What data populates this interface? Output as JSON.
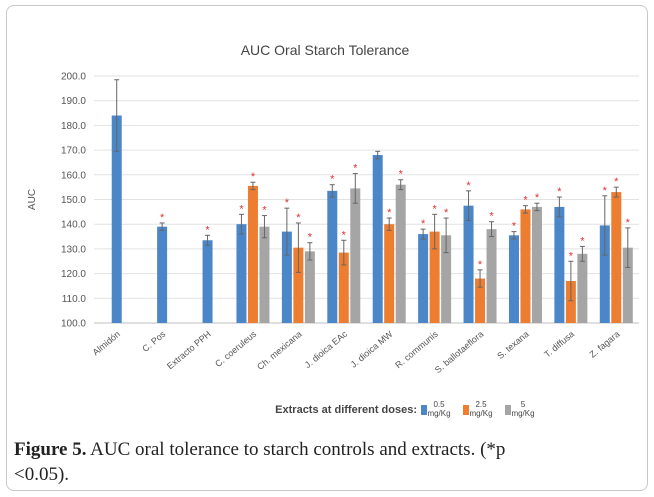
{
  "chart_data": {
    "type": "bar",
    "title": "AUC Oral Starch Tolerance",
    "ylabel": "AUC",
    "xlabel": "Extracts at different doses:",
    "ylim": [
      100,
      200
    ],
    "yticks": [
      "100.0",
      "110.0",
      "120.0",
      "130.0",
      "140.0",
      "150.0",
      "160.0",
      "170.0",
      "180.0",
      "190.0",
      "200.0"
    ],
    "grid": true,
    "legend_position": "bottom",
    "categories": [
      "Almidón",
      "C. Pos",
      "Extracto PPH",
      "C. coeruleus",
      "Ch. mexicana",
      "J. dioica EAc",
      "J. dioica MW",
      "R. communis",
      "S. ballotaeflora",
      "S. texana",
      "T. diffusa",
      "Z. fagara"
    ],
    "series": [
      {
        "name": "0.5 mg/Kg",
        "color": "#4a86c8",
        "values": [
          184,
          139,
          133.5,
          140,
          137,
          153.5,
          168,
          136,
          147.5,
          135.5,
          147,
          139.5
        ],
        "errors": [
          14.5,
          1.5,
          2,
          4,
          9.5,
          2.5,
          1.5,
          2,
          6,
          1.5,
          4,
          12
        ],
        "significant": [
          false,
          true,
          true,
          true,
          true,
          true,
          false,
          true,
          true,
          true,
          true,
          true
        ]
      },
      {
        "name": "2.5 mg/Kg",
        "color": "#ed7d31",
        "values": [
          null,
          null,
          null,
          155.5,
          130.5,
          128.5,
          140,
          137,
          118,
          146,
          117,
          153
        ],
        "errors": [
          null,
          null,
          null,
          1.5,
          10,
          5,
          2.5,
          7,
          3.5,
          1.5,
          8,
          2
        ],
        "significant": [
          false,
          false,
          false,
          true,
          true,
          true,
          true,
          true,
          true,
          true,
          true,
          true
        ]
      },
      {
        "name": "5 mg/Kg",
        "color": "#a5a5a5",
        "values": [
          null,
          null,
          null,
          139,
          129,
          154.5,
          156,
          135.5,
          138,
          147,
          128,
          130.5
        ],
        "errors": [
          null,
          null,
          null,
          4.5,
          3.5,
          6,
          2,
          7,
          3,
          1.5,
          3,
          8
        ],
        "significant": [
          false,
          false,
          false,
          true,
          true,
          true,
          true,
          true,
          true,
          true,
          true,
          true
        ]
      }
    ],
    "legend": [
      {
        "value": "0.5",
        "unit": "mg/Kg",
        "color": "#4a86c8"
      },
      {
        "value": "2.5",
        "unit": "mg/Kg",
        "color": "#ed7d31"
      },
      {
        "value": "5",
        "unit": "mg/Kg",
        "color": "#a5a5a5"
      }
    ],
    "significance_marker": "*"
  },
  "caption": {
    "label": "Figure 5.",
    "text": " AUC oral tolerance to starch controls and extracts. (*p",
    "line2": "<0.05)."
  }
}
